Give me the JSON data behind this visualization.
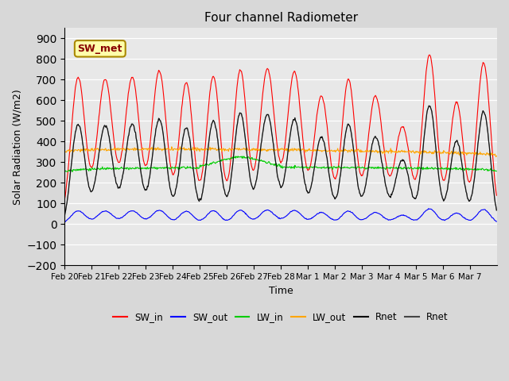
{
  "title": "Four channel Radiometer",
  "ylabel": "Solar Radiation (W/m2)",
  "xlabel": "Time",
  "annotation": "SW_met",
  "ylim": [
    -200,
    950
  ],
  "yticks": [
    -200,
    -100,
    0,
    100,
    200,
    300,
    400,
    500,
    600,
    700,
    800,
    900
  ],
  "date_labels": [
    "Feb 20",
    "Feb 21",
    "Feb 22",
    "Feb 23",
    "Feb 24",
    "Feb 25",
    "Feb 26",
    "Feb 27",
    "Feb 28",
    "Mar 1",
    "Mar 2",
    "Mar 3",
    "Mar 4",
    "Mar 5",
    "Mar 6",
    "Mar 7"
  ],
  "background_color": "#e8e8e8",
  "plot_bg_color": "#e8e8e8",
  "colors": {
    "SW_in": "#ff0000",
    "SW_out": "#0000ff",
    "LW_in": "#00cc00",
    "LW_out": "#ffa500",
    "Rnet1": "#000000",
    "Rnet2": "#444444"
  },
  "legend_labels": [
    "SW_in",
    "SW_out",
    "LW_in",
    "LW_out",
    "Rnet",
    "Rnet"
  ]
}
